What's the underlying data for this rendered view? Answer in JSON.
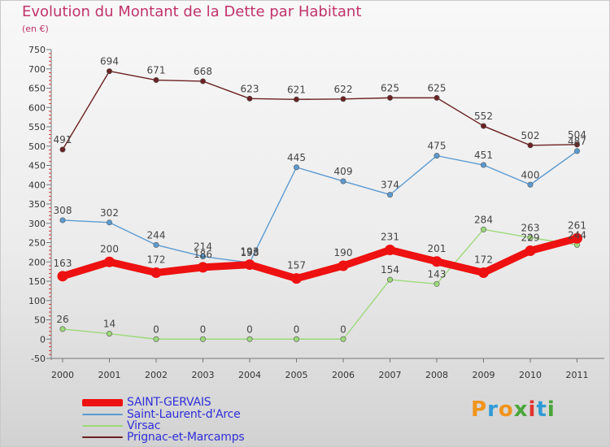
{
  "header": {
    "title": "Evolution du Montant de la Dette par Habitant",
    "unit": "(en €)"
  },
  "logo": {
    "text": "Proxiti",
    "colors": [
      "#f0941c",
      "#2e9bd6",
      "#f0941c",
      "#4aa53a",
      "#e2322f",
      "#2e9bd6",
      "#4aa53a"
    ]
  },
  "chart_data": {
    "type": "line",
    "title": "Evolution du Montant de la Dette par Habitant",
    "subtitle": "(en €)",
    "xlabel": "",
    "ylabel": "",
    "x": [
      "2000",
      "2001",
      "2002",
      "2003",
      "2004",
      "2005",
      "2006",
      "2007",
      "2008",
      "2009",
      "2010",
      "2011"
    ],
    "ylim": [
      -50,
      750
    ],
    "yticks": [
      -50,
      0,
      50,
      100,
      150,
      200,
      250,
      300,
      350,
      400,
      450,
      500,
      550,
      600,
      650,
      700,
      750
    ],
    "grid": false,
    "legend_position": "bottom-left",
    "series": [
      {
        "name": "SAINT-GERVAIS",
        "color": "#ee1111",
        "values": [
          163,
          200,
          172,
          186,
          193,
          157,
          190,
          231,
          201,
          172,
          229,
          261
        ],
        "labels": [
          "163",
          "200",
          "172",
          "186",
          "193",
          "157",
          "190",
          "231",
          "201",
          "172",
          "229",
          "261"
        ]
      },
      {
        "name": "Saint-Laurent-d'Arce",
        "color": "#5b9bd1",
        "values": [
          308,
          302,
          244,
          214,
          198,
          445,
          409,
          374,
          475,
          451,
          400,
          487
        ],
        "labels": [
          "308",
          "302",
          "244",
          "214",
          "198",
          "445",
          "409",
          "374",
          "475",
          "451",
          "400",
          "487"
        ]
      },
      {
        "name": "Virsac",
        "color": "#9dd97a",
        "values": [
          26,
          14,
          0,
          0,
          0,
          0,
          0,
          154,
          143,
          284,
          263,
          244
        ],
        "labels": [
          "26",
          "14",
          "0",
          "0",
          "0",
          "0",
          "0",
          "154",
          "143",
          "284",
          "263",
          "244"
        ]
      },
      {
        "name": "Prignac-et-Marcamps",
        "color": "#6b2222",
        "values": [
          491,
          694,
          671,
          668,
          623,
          621,
          622,
          625,
          625,
          552,
          502,
          504
        ],
        "labels": [
          "491",
          "694",
          "671",
          "668",
          "623",
          "621",
          "622",
          "625",
          "625",
          "552",
          "502",
          "504"
        ]
      }
    ]
  }
}
